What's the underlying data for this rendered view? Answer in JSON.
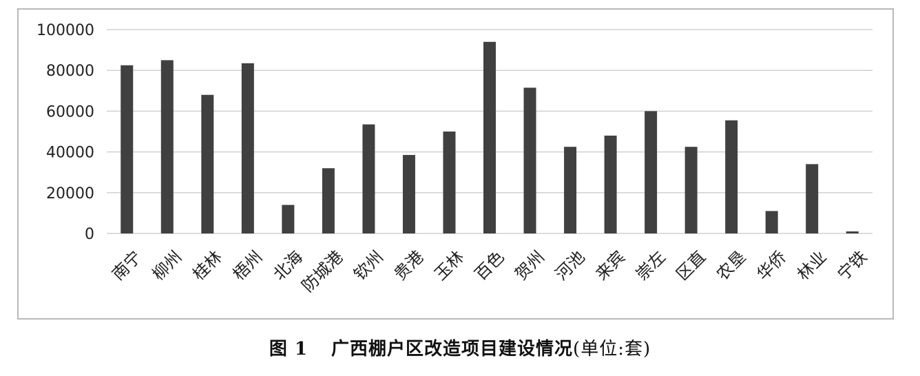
{
  "chart_data": {
    "type": "bar",
    "categories": [
      "南宁",
      "柳州",
      "桂林",
      "梧州",
      "北海",
      "防城港",
      "钦州",
      "贵港",
      "玉林",
      "百色",
      "贺州",
      "河池",
      "来宾",
      "崇左",
      "区直",
      "农垦",
      "华侨",
      "林业",
      "宁铁"
    ],
    "values": [
      82500,
      85000,
      68000,
      83500,
      14000,
      32000,
      53500,
      38500,
      50000,
      94000,
      71500,
      42500,
      48000,
      60000,
      42500,
      55500,
      11000,
      34000,
      1000
    ],
    "ylim": [
      0,
      100000
    ],
    "yticks": [
      "0",
      "20000",
      "40000",
      "60000",
      "80000",
      "100000"
    ],
    "ytick_values": [
      0,
      20000,
      40000,
      60000,
      80000,
      100000
    ],
    "grid": true,
    "bar_color": "#404040",
    "grid_color": "#d0d0d0"
  },
  "caption": {
    "figure_number": "图 1",
    "title": "广西棚户区改造项目建设情况",
    "unit": "(单位:套)"
  }
}
